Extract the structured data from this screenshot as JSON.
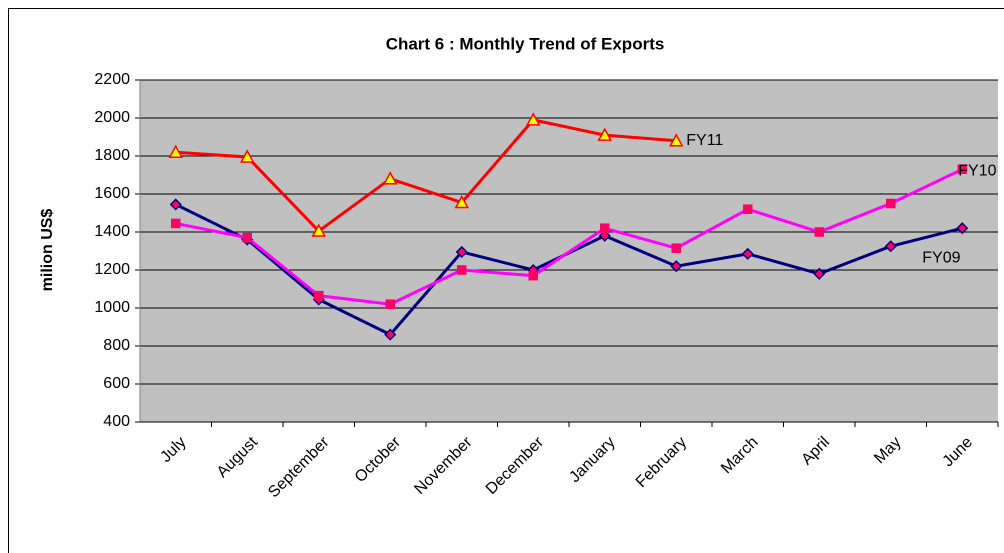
{
  "chart_data": {
    "type": "line",
    "title": "Chart 6 : Monthly Trend of Exports",
    "y_label": "milion US$",
    "categories": [
      "July",
      "August",
      "September",
      "October",
      "November",
      "December",
      "January",
      "February",
      "March",
      "April",
      "May",
      "June"
    ],
    "series": [
      {
        "name": "FY09",
        "color": "#000080",
        "marker": "diamond",
        "marker_color": "#ff0066",
        "values": [
          1545,
          1360,
          1045,
          860,
          1295,
          1200,
          1380,
          1220,
          1285,
          1180,
          1325,
          1420
        ]
      },
      {
        "name": "FY10",
        "color": "#ff00ff",
        "marker": "square",
        "marker_color": "#ff0066",
        "values": [
          1445,
          1370,
          1065,
          1020,
          1200,
          1170,
          1420,
          1315,
          1520,
          1400,
          1550,
          1730
        ]
      },
      {
        "name": "FY11",
        "color": "#ff0000",
        "marker": "triangle",
        "marker_color": "#ffff00",
        "values": [
          1820,
          1795,
          1405,
          1680,
          1555,
          1990,
          1910,
          1880,
          null,
          null,
          null,
          null
        ]
      }
    ],
    "ylim": [
      400,
      2200
    ],
    "yticks": [
      400,
      600,
      800,
      1000,
      1200,
      1400,
      1600,
      1800,
      2000,
      2200
    ],
    "grid": true
  }
}
